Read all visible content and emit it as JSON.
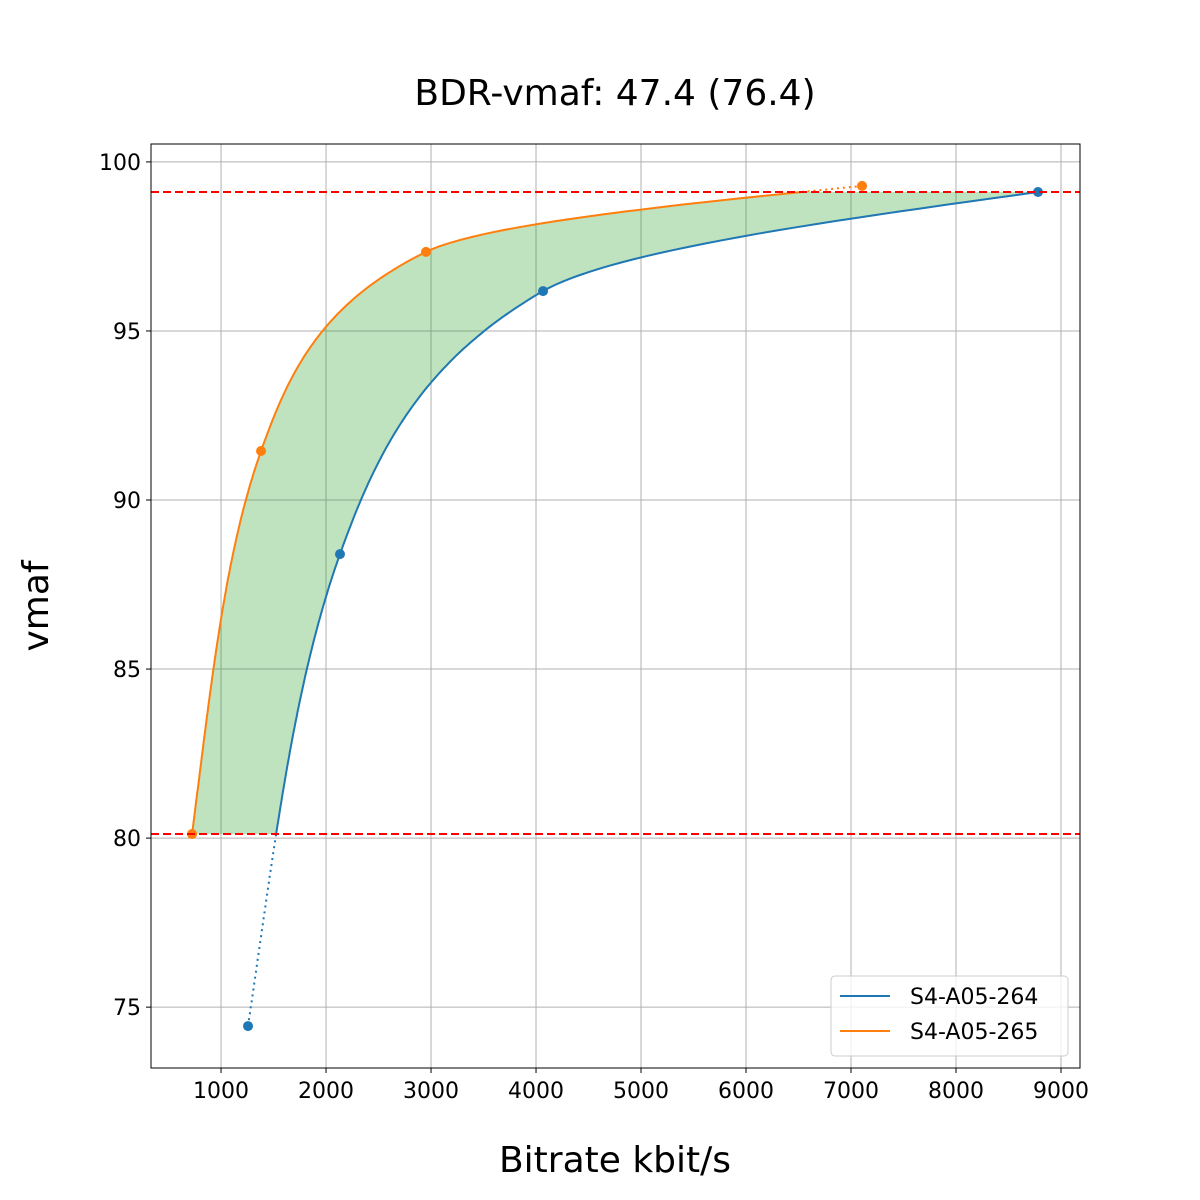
{
  "chart_data": {
    "type": "line",
    "title": "BDR-vmaf: 47.4 (76.4)",
    "xlabel": "Bitrate kbit/s",
    "ylabel": "vmaf",
    "xlim": [
      333,
      9181
    ],
    "ylim": [
      73.2,
      100.53
    ],
    "grid": true,
    "legend_placement": "lower-right",
    "xticks": [
      1000,
      2000,
      3000,
      4000,
      5000,
      6000,
      7000,
      8000,
      9000
    ],
    "yticks": [
      75,
      80,
      85,
      90,
      95,
      100
    ],
    "thresholds": {
      "upper": 99.11,
      "lower": 80.12,
      "color": "#ff0000"
    },
    "fill_color": "#2ca02c",
    "series": [
      {
        "name": "S4-A05-264",
        "color": "#1f77b4",
        "x": [
          1257,
          2133,
          4067,
          8781
        ],
        "y": [
          74.44,
          88.4,
          96.18,
          99.11
        ]
      },
      {
        "name": "S4-A05-265",
        "color": "#ff7f0e",
        "x": [
          724,
          1381,
          2952,
          7105
        ],
        "y": [
          80.12,
          91.45,
          97.34,
          99.29
        ]
      }
    ]
  }
}
